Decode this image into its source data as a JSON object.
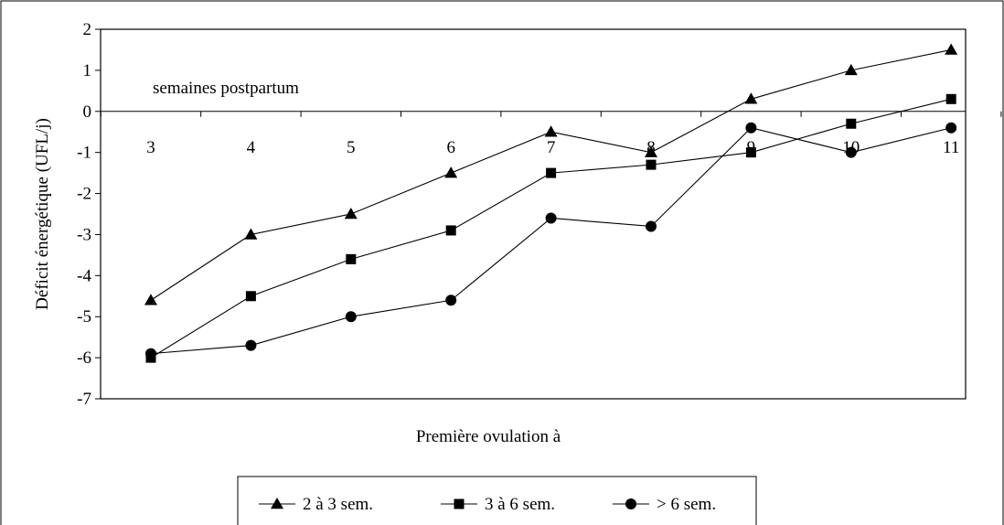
{
  "chart_data": {
    "type": "line",
    "x": [
      3,
      4,
      5,
      6,
      7,
      8,
      9,
      10,
      11
    ],
    "x_tick_labels": [
      "3",
      "4",
      "5",
      "6",
      "7",
      "8",
      "9",
      "10",
      "11"
    ],
    "x_axis_caption": "semaines postpartum",
    "xlabel": "Première ovulation à",
    "ylabel": "Déficit énergétique (UFL/j)",
    "ylim": [
      -7,
      2
    ],
    "y_ticks": [
      2,
      1,
      0,
      -1,
      -2,
      -3,
      -4,
      -5,
      -6,
      -7
    ],
    "y_tick_labels": [
      "2",
      "1",
      "0",
      "-1",
      "-2",
      "-3",
      "-4",
      "-5",
      "-6",
      "-7"
    ],
    "grid": false,
    "legend_position": "bottom",
    "series": [
      {
        "name": "2 à 3 sem.",
        "marker": "triangle",
        "color": "#000000",
        "values": [
          -4.6,
          -3.0,
          -2.5,
          -1.5,
          -0.5,
          -1.0,
          0.3,
          1.0,
          1.5
        ]
      },
      {
        "name": "3 à 6 sem.",
        "marker": "square",
        "color": "#000000",
        "values": [
          -6.0,
          -4.5,
          -3.6,
          -2.9,
          -1.5,
          -1.3,
          -1.0,
          -0.3,
          0.3
        ]
      },
      {
        "name": "> 6 sem.",
        "marker": "circle",
        "color": "#000000",
        "values": [
          -5.9,
          -5.7,
          -5.0,
          -4.6,
          -2.6,
          -2.8,
          -0.4,
          -1.0,
          -0.4
        ]
      }
    ]
  }
}
